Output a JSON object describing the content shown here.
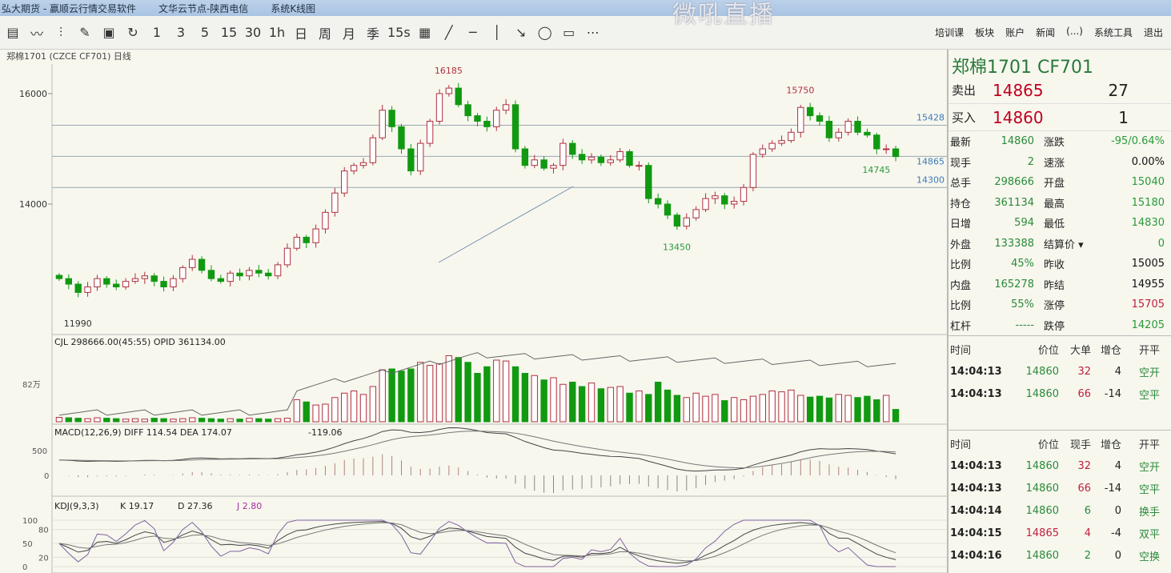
{
  "title": {
    "parts": [
      "弘大期货 - 赢顺云行情交易软件",
      "文华云节点-陕西电信",
      "系统K线图"
    ],
    "watermark": "微吼直播"
  },
  "toolbar": {
    "icons": [
      "table-icon",
      "line-icon",
      "candle-icon",
      "paint-icon",
      "save-icon",
      "refresh-icon"
    ],
    "icon_glyphs": [
      "▤",
      "〰",
      "⫶",
      "✎",
      "▣",
      "↻"
    ],
    "periods": [
      "1",
      "3",
      "5",
      "15",
      "30",
      "1h",
      "日",
      "周",
      "月",
      "季",
      "15s"
    ],
    "tools": [
      "▦",
      "╱",
      "─",
      "│",
      "↘",
      "◯",
      "▭",
      "⋯"
    ],
    "right": [
      "培训课",
      "板块",
      "账户",
      "新闻",
      "(...)",
      "系统工具",
      "退出"
    ]
  },
  "subtitle": "郑棉1701 (CZCE CF701) 日线",
  "chart_data": {
    "type": "candlestick",
    "ylim": [
      11800,
      16300
    ],
    "yticks": [
      14000,
      16000
    ],
    "closes": [
      12650,
      12550,
      12400,
      12500,
      12650,
      12550,
      12500,
      12600,
      12650,
      12700,
      12600,
      12500,
      12650,
      12850,
      13000,
      12800,
      12650,
      12600,
      12750,
      12700,
      12800,
      12750,
      12700,
      12900,
      13200,
      13400,
      13300,
      13550,
      13850,
      14200,
      14600,
      14700,
      14750,
      15200,
      15700,
      15400,
      15000,
      14600,
      15100,
      15500,
      16000,
      16100,
      15800,
      15600,
      15500,
      15400,
      15700,
      15800,
      15000,
      14700,
      14800,
      14650,
      14700,
      15100,
      14900,
      14800,
      14850,
      14750,
      14800,
      14950,
      14700,
      14700,
      14100,
      14000,
      13800,
      13600,
      13750,
      13900,
      14100,
      14150,
      14000,
      14050,
      14300,
      14900,
      15000,
      15100,
      15150,
      15300,
      15750,
      15600,
      15500,
      15200,
      15300,
      15500,
      15300,
      15250,
      15000,
      15000,
      14860
    ],
    "volumes": [
      10,
      9,
      8,
      7,
      9,
      8,
      7,
      6,
      7,
      6,
      8,
      7,
      6,
      7,
      9,
      8,
      7,
      6,
      7,
      6,
      8,
      7,
      6,
      7,
      8,
      50,
      45,
      38,
      40,
      55,
      65,
      70,
      62,
      80,
      118,
      120,
      115,
      120,
      135,
      128,
      132,
      150,
      146,
      135,
      110,
      125,
      140,
      138,
      125,
      110,
      105,
      95,
      100,
      85,
      90,
      80,
      88,
      75,
      78,
      80,
      65,
      70,
      62,
      90,
      72,
      60,
      55,
      65,
      58,
      62,
      48,
      55,
      50,
      58,
      62,
      70,
      68,
      72,
      60,
      56,
      58,
      54,
      62,
      60,
      55,
      58,
      50,
      60,
      28
    ],
    "vol_axis_label": "82万",
    "hlines": [
      15428,
      14865,
      14300
    ],
    "annotations": [
      {
        "text": "16185",
        "color": "#b03040",
        "idx": 41
      },
      {
        "text": "15750",
        "color": "#b03040",
        "idx": 78
      },
      {
        "text": "14745",
        "color": "#2a9a3a",
        "idx": 86
      },
      {
        "text": "13450",
        "color": "#2a9a3a",
        "idx": 65
      },
      {
        "text": "11990",
        "color": "#333",
        "idx": 2
      }
    ],
    "vol_legend": "CJL  298666.00(45:55)   OPID   361134.00",
    "macd_legend": [
      "MACD(12,26,9)  DIFF  114.54   DEA  174.07",
      "-119.06"
    ],
    "macd_yticks": [
      "500",
      "0"
    ],
    "kdj_legend": {
      "name": "KDJ(9,3,3)",
      "k": "K  19.17",
      "d": "D  27.36",
      "j": "J  2.80"
    },
    "kdj_yticks": [
      "100",
      "80",
      "50",
      "20",
      "0"
    ],
    "colors": {
      "up": "#b03040",
      "down": "#119911",
      "grid": "#c8c8c0",
      "j": "#a030a0"
    }
  },
  "quote": {
    "name": "郑棉1701  CF701",
    "sell": {
      "label": "卖出",
      "price": "14865",
      "vol": "27"
    },
    "buy": {
      "label": "买入",
      "price": "14860",
      "vol": "1"
    },
    "rows": [
      [
        "最新",
        "14860",
        "涨跌",
        "-95/0.64%"
      ],
      [
        "现手",
        "2",
        "速涨",
        "0.00%"
      ],
      [
        "总手",
        "298666",
        "开盘",
        "15040"
      ],
      [
        "持仓",
        "361134",
        "最高",
        "15180"
      ],
      [
        "日增",
        "594",
        "最低",
        "14830"
      ],
      [
        "外盘",
        "133388",
        "结算价 ▾",
        "0"
      ],
      [
        "比例",
        "45%",
        "昨收",
        "15005"
      ],
      [
        "内盘",
        "165278",
        "昨结",
        "14955"
      ],
      [
        "比例",
        "55%",
        "涨停",
        "15705"
      ],
      [
        "杠杆",
        "-----",
        "跌停",
        "14205"
      ]
    ]
  },
  "ticks1": {
    "header": [
      "时间",
      "价位",
      "大单",
      "增仓",
      "开平"
    ],
    "rows": [
      [
        "14:04:13",
        "14860",
        "32",
        "4",
        "空开"
      ],
      [
        "14:04:13",
        "14860",
        "66",
        "-14",
        "空平"
      ]
    ]
  },
  "ticks2": {
    "header": [
      "时间",
      "价位",
      "现手",
      "增仓",
      "开平"
    ],
    "rows": [
      [
        "14:04:13",
        "14860",
        "32",
        "4",
        "空开"
      ],
      [
        "14:04:13",
        "14860",
        "66",
        "-14",
        "空平"
      ],
      [
        "14:04:14",
        "14860",
        "6",
        "0",
        "换手"
      ],
      [
        "14:04:15",
        "14865",
        "4",
        "-4",
        "双平"
      ],
      [
        "14:04:16",
        "14860",
        "2",
        "0",
        "空换"
      ]
    ]
  }
}
